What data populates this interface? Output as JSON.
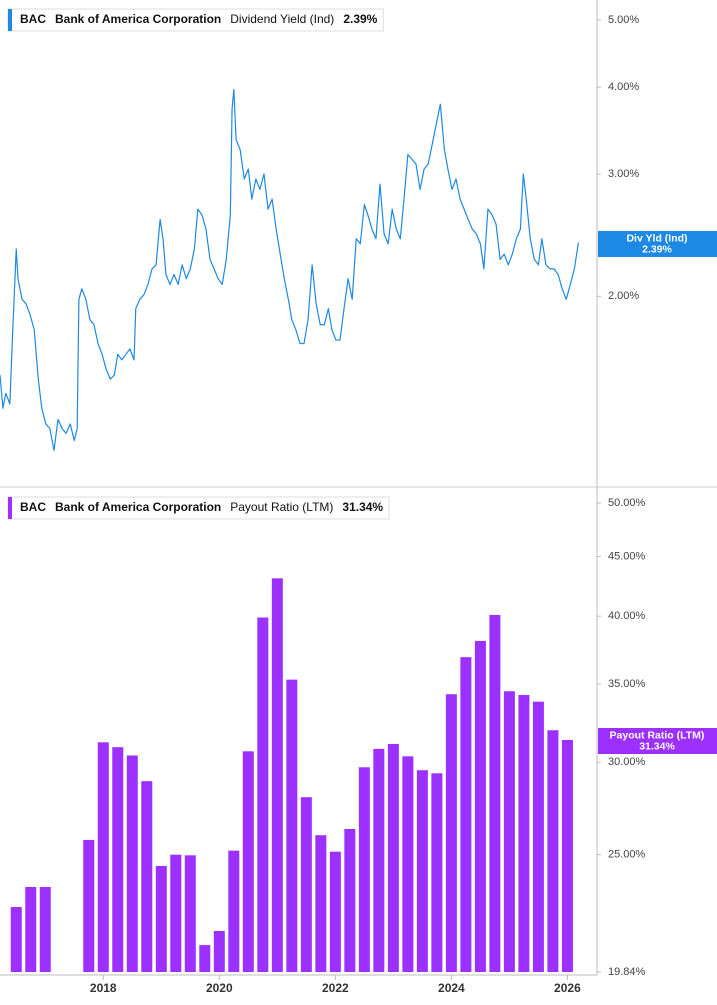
{
  "chart_data": [
    {
      "type": "line",
      "log": true,
      "ticker": "BAC",
      "company": "Bank of America Corporation",
      "metric": "Dividend Yield (Ind)",
      "value_label": "2.39%",
      "tag_label": "Div Yld (Ind)",
      "xlim": [
        2016.22,
        2026.51
      ],
      "ylim": [
        1.07,
        5.34
      ],
      "yticks": [
        {
          "value": 5,
          "label": "5.00%"
        },
        {
          "value": 4,
          "label": "4.00%"
        },
        {
          "value": 3,
          "label": "3.00%"
        },
        {
          "value": 2,
          "label": "2.00%"
        }
      ],
      "series": [
        {
          "color": "#1e88e5",
          "x": [
            2016.22,
            2016.27,
            2016.32,
            2016.39,
            2016.44,
            2016.5,
            2016.53,
            2016.6,
            2016.67,
            2016.74,
            2016.81,
            2016.88,
            2016.94,
            2017.01,
            2017.08,
            2017.15,
            2017.22,
            2017.29,
            2017.36,
            2017.43,
            2017.5,
            2017.55,
            2017.58,
            2017.63,
            2017.7,
            2017.77,
            2017.84,
            2017.91,
            2017.98,
            2018.05,
            2018.12,
            2018.19,
            2018.25,
            2018.32,
            2018.39,
            2018.46,
            2018.53,
            2018.56,
            2018.63,
            2018.7,
            2018.77,
            2018.84,
            2018.91,
            2018.98,
            2019.03,
            2019.08,
            2019.15,
            2019.22,
            2019.29,
            2019.36,
            2019.43,
            2019.5,
            2019.57,
            2019.63,
            2019.7,
            2019.77,
            2019.84,
            2019.91,
            2019.98,
            2020.05,
            2020.12,
            2020.19,
            2020.22,
            2020.25,
            2020.29,
            2020.36,
            2020.43,
            2020.5,
            2020.56,
            2020.63,
            2020.7,
            2020.77,
            2020.84,
            2020.91,
            2020.98,
            2021.05,
            2021.12,
            2021.19,
            2021.25,
            2021.32,
            2021.39,
            2021.46,
            2021.53,
            2021.6,
            2021.67,
            2021.74,
            2021.81,
            2021.88,
            2021.94,
            2022.01,
            2022.08,
            2022.15,
            2022.22,
            2022.29,
            2022.36,
            2022.43,
            2022.5,
            2022.56,
            2022.63,
            2022.7,
            2022.77,
            2022.84,
            2022.91,
            2022.98,
            2023.05,
            2023.12,
            2023.19,
            2023.25,
            2023.32,
            2023.39,
            2023.46,
            2023.53,
            2023.6,
            2023.67,
            2023.74,
            2023.81,
            2023.88,
            2023.94,
            2024.01,
            2024.08,
            2024.15,
            2024.22,
            2024.29,
            2024.36,
            2024.43,
            2024.5,
            2024.56,
            2024.63,
            2024.7,
            2024.77,
            2024.84,
            2024.91,
            2024.98,
            2025.05,
            2025.12,
            2025.19,
            2025.24,
            2025.29,
            2025.36,
            2025.43,
            2025.5,
            2025.56,
            2025.63,
            2025.7,
            2025.77,
            2025.84,
            2025.91,
            2025.98,
            2026.05,
            2026.12,
            2026.19
          ],
          "values": [
            1.54,
            1.38,
            1.45,
            1.4,
            1.79,
            2.34,
            2.12,
            1.98,
            1.95,
            1.88,
            1.79,
            1.52,
            1.38,
            1.31,
            1.29,
            1.2,
            1.33,
            1.29,
            1.27,
            1.31,
            1.24,
            1.29,
            1.98,
            2.05,
            1.98,
            1.85,
            1.82,
            1.71,
            1.65,
            1.57,
            1.52,
            1.54,
            1.65,
            1.62,
            1.65,
            1.68,
            1.62,
            1.92,
            1.98,
            2.01,
            2.08,
            2.19,
            2.22,
            2.58,
            2.42,
            2.15,
            2.08,
            2.15,
            2.08,
            2.22,
            2.12,
            2.19,
            2.34,
            2.67,
            2.62,
            2.5,
            2.26,
            2.19,
            2.12,
            2.08,
            2.26,
            2.62,
            3.72,
            3.97,
            3.36,
            3.25,
            2.95,
            3.05,
            2.76,
            2.95,
            2.85,
            3.0,
            2.67,
            2.76,
            2.5,
            2.3,
            2.12,
            1.98,
            1.85,
            1.79,
            1.71,
            1.71,
            1.85,
            2.22,
            1.95,
            1.82,
            1.82,
            1.92,
            1.79,
            1.73,
            1.73,
            1.92,
            2.12,
            1.98,
            2.42,
            2.38,
            2.71,
            2.62,
            2.5,
            2.42,
            2.9,
            2.46,
            2.38,
            2.67,
            2.5,
            2.42,
            2.8,
            3.2,
            3.15,
            3.1,
            2.85,
            3.05,
            3.1,
            3.31,
            3.54,
            3.78,
            3.25,
            3.05,
            2.85,
            2.95,
            2.76,
            2.67,
            2.58,
            2.5,
            2.46,
            2.38,
            2.19,
            2.67,
            2.62,
            2.54,
            2.26,
            2.3,
            2.22,
            2.3,
            2.42,
            2.5,
            3.0,
            2.76,
            2.42,
            2.26,
            2.22,
            2.42,
            2.22,
            2.19,
            2.19,
            2.15,
            2.05,
            1.98,
            2.08,
            2.19,
            2.39
          ]
        }
      ]
    },
    {
      "type": "bar",
      "log": true,
      "ticker": "BAC",
      "company": "Bank of America Corporation",
      "metric": "Payout Ratio (LTM)",
      "value_label": "31.34%",
      "xlim": [
        2016.22,
        2026.51
      ],
      "ylim": [
        19.84,
        51.5
      ],
      "xticks": [
        2018,
        2020,
        2022,
        2024,
        2026
      ],
      "yticks": [
        {
          "value": 50,
          "label": "50.00%"
        },
        {
          "value": 45,
          "label": "45.00%"
        },
        {
          "value": 40,
          "label": "40.00%"
        },
        {
          "value": 35,
          "label": "35.00%"
        },
        {
          "value": 30,
          "label": "30.00%"
        },
        {
          "value": 25,
          "label": "25.00%"
        },
        {
          "value": 19.84,
          "label": "19.84%"
        }
      ],
      "series": [
        {
          "color": "#9b30ff",
          "x": [
            2016.5,
            2016.75,
            2017.0,
            2017.25,
            2017.5,
            2017.75,
            2018.0,
            2018.25,
            2018.5,
            2018.75,
            2019.0,
            2019.25,
            2019.5,
            2019.75,
            2020.0,
            2020.25,
            2020.5,
            2020.75,
            2021.0,
            2021.25,
            2021.5,
            2021.75,
            2022.0,
            2022.25,
            2022.5,
            2022.75,
            2023.0,
            2023.25,
            2023.5,
            2023.75,
            2024.0,
            2024.25,
            2024.5,
            2024.75,
            2025.0,
            2025.25,
            2025.5,
            2025.75,
            2026.0
          ],
          "values": [
            22.55,
            23.46,
            23.46,
            null,
            null,
            25.74,
            31.2,
            30.9,
            30.4,
            28.9,
            24.45,
            25.0,
            24.97,
            20.92,
            21.51,
            25.2,
            30.65,
            39.9,
            43.1,
            35.3,
            28.0,
            25.98,
            25.15,
            26.3,
            29.7,
            30.8,
            31.1,
            30.35,
            29.53,
            29.35,
            34.3,
            36.9,
            38.1,
            40.1,
            34.5,
            34.25,
            33.8,
            31.95,
            31.34
          ]
        }
      ]
    }
  ]
}
